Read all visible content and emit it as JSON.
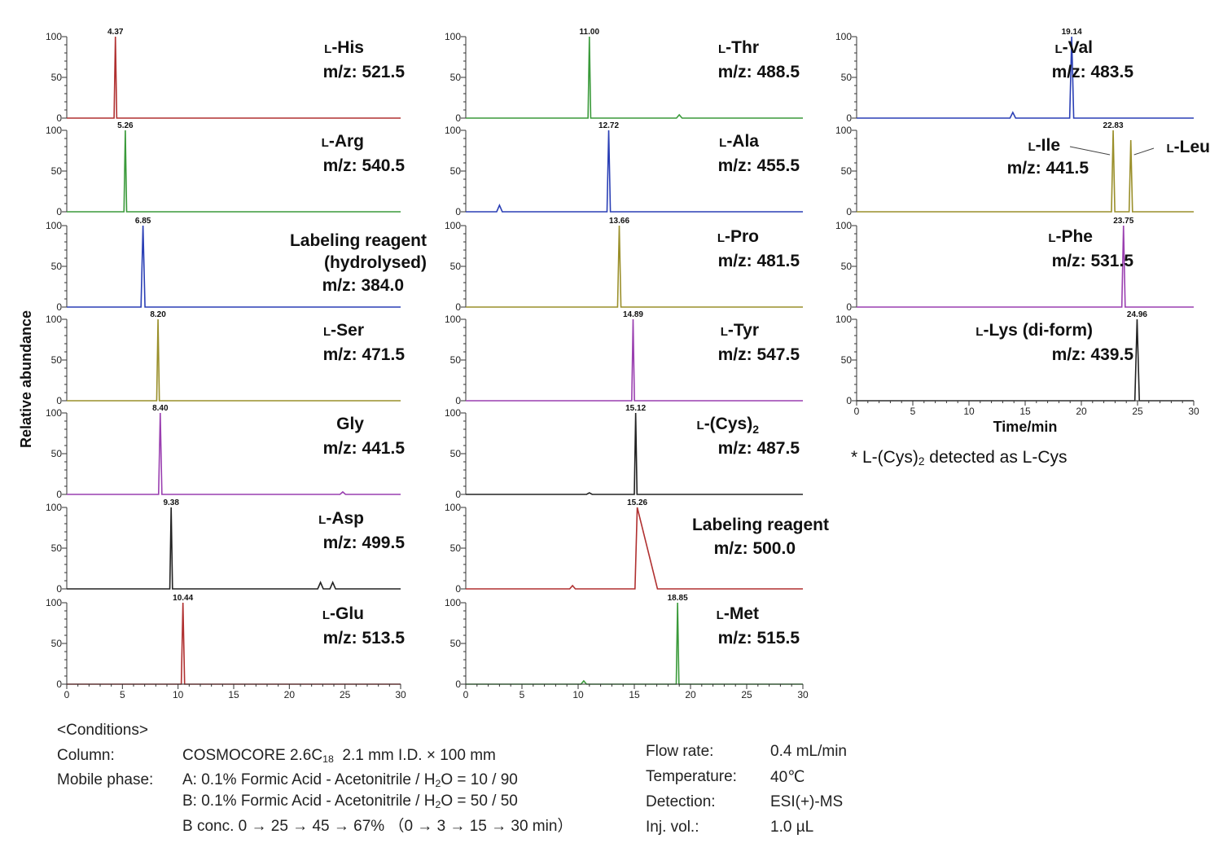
{
  "chart_data": {
    "type": "line",
    "xlabel": "Time/min",
    "ylabel": "Relative abundance",
    "xlim": [
      0,
      30
    ],
    "ylim": [
      0,
      100
    ],
    "xticks": [
      "0",
      "5",
      "10",
      "15",
      "20",
      "25",
      "30"
    ],
    "yticks": [
      "0",
      "50",
      "100"
    ],
    "panels": [
      {
        "col": 0,
        "row": 0,
        "name": "L-His",
        "mz": "m/z: 521.5",
        "peak": 4.37,
        "peak_label": "4.37",
        "color": "#b03030",
        "width": 0.12,
        "minor": []
      },
      {
        "col": 0,
        "row": 1,
        "name": "L-Arg",
        "mz": "m/z: 540.5",
        "peak": 5.26,
        "peak_label": "5.26",
        "color": "#3a9a3a",
        "width": 0.12,
        "minor": []
      },
      {
        "col": 0,
        "row": 2,
        "name": "Labeling reagent\n(hydrolysed)",
        "mz": "m/z: 384.0",
        "peak": 6.85,
        "peak_label": "6.85",
        "color": "#2a3fb5",
        "width": 0.18,
        "minor": []
      },
      {
        "col": 0,
        "row": 3,
        "name": "L-Ser",
        "mz": "m/z: 471.5",
        "peak": 8.2,
        "peak_label": "8.20",
        "color": "#9a8f2a",
        "width": 0.12,
        "minor": []
      },
      {
        "col": 0,
        "row": 4,
        "name": "Gly",
        "mz": "m/z: 441.5",
        "peak": 8.4,
        "peak_label": "8.40",
        "color": "#9a3fb0",
        "width": 0.15,
        "minor": [
          [
            24.8,
            3
          ]
        ]
      },
      {
        "col": 0,
        "row": 5,
        "name": "L-Asp",
        "mz": "m/z: 499.5",
        "peak": 9.38,
        "peak_label": "9.38",
        "color": "#222222",
        "width": 0.12,
        "minor": [
          [
            22.8,
            8
          ],
          [
            23.9,
            8
          ]
        ]
      },
      {
        "col": 0,
        "row": 6,
        "name": "L-Glu",
        "mz": "m/z: 513.5",
        "peak": 10.44,
        "peak_label": "10.44",
        "color": "#b03030",
        "width": 0.15,
        "minor": []
      },
      {
        "col": 1,
        "row": 0,
        "name": "L-Thr",
        "mz": "m/z: 488.5",
        "peak": 11.0,
        "peak_label": "11.00",
        "color": "#3a9a3a",
        "width": 0.12,
        "minor": [
          [
            19.0,
            4
          ]
        ]
      },
      {
        "col": 1,
        "row": 1,
        "name": "L-Ala",
        "mz": "m/z: 455.5",
        "peak": 12.72,
        "peak_label": "12.72",
        "color": "#2a3fb5",
        "width": 0.15,
        "minor": [
          [
            3.0,
            8
          ]
        ]
      },
      {
        "col": 1,
        "row": 2,
        "name": "L-Pro",
        "mz": "m/z: 481.5",
        "peak": 13.66,
        "peak_label": "13.66",
        "color": "#9a8f2a",
        "width": 0.15,
        "minor": []
      },
      {
        "col": 1,
        "row": 3,
        "name": "L-Tyr",
        "mz": "m/z: 547.5",
        "peak": 14.89,
        "peak_label": "14.89",
        "color": "#9a3fb0",
        "width": 0.12,
        "minor": []
      },
      {
        "col": 1,
        "row": 4,
        "name": "L-(Cys)",
        "mz": "m/z: 487.5",
        "peak": 15.12,
        "peak_label": "15.12",
        "color": "#222222",
        "width": 0.12,
        "minor": [
          [
            11.0,
            2
          ]
        ]
      },
      {
        "col": 1,
        "row": 5,
        "name": "Labeling reagent",
        "mz": "m/z: 500.0",
        "peak": 15.26,
        "peak_label": "15.26",
        "color": "#b03030",
        "width": 0.2,
        "tail": 1.6,
        "minor": [
          [
            9.5,
            4
          ]
        ]
      },
      {
        "col": 1,
        "row": 6,
        "name": "L-Met",
        "mz": "m/z: 515.5",
        "peak": 18.85,
        "peak_label": "18.85",
        "color": "#3a9a3a",
        "width": 0.12,
        "minor": [
          [
            10.5,
            4
          ]
        ]
      },
      {
        "col": 2,
        "row": 0,
        "name": "L-Val",
        "mz": "m/z: 483.5",
        "peak": 19.14,
        "peak_label": "19.14",
        "color": "#2a3fb5",
        "width": 0.18,
        "minor": [
          [
            13.9,
            7
          ]
        ]
      },
      {
        "col": 2,
        "row": 1,
        "name": "L-Ile",
        "name2": "L-Leu",
        "mz": "m/z: 441.5",
        "peak": 22.83,
        "peak_label": "22.83",
        "peak2": 24.4,
        "color": "#9a8f2a",
        "width": 0.15,
        "minor": []
      },
      {
        "col": 2,
        "row": 2,
        "name": "L-Phe",
        "mz": "m/z: 531.5",
        "peak": 23.75,
        "peak_label": "23.75",
        "color": "#9a3fb0",
        "width": 0.15,
        "minor": []
      },
      {
        "col": 2,
        "row": 3,
        "name": "L-Lys (di-form)",
        "mz": "m/z: 439.5",
        "peak": 24.96,
        "peak_label": "24.96",
        "color": "#222222",
        "width": 0.2,
        "minor": []
      }
    ],
    "cys_subscript": "2"
  },
  "footnote": {
    "pre": "* L-(Cys)",
    "sub": "2",
    "post": " detected as L-Cys"
  },
  "conditions": {
    "header": "<Conditions>",
    "column_label": "Column:",
    "column_pre": "COSMOCORE 2.6C",
    "column_sub": "18",
    "column_post": "  2.1 mm I.D. × 100 mm",
    "mobile_label": "Mobile phase:",
    "mobile_a_pre": "A: 0.1% Formic Acid - Acetonitrile / H",
    "mobile_a_sub": "2",
    "mobile_a_post": "O = 10 / 90",
    "mobile_b_pre": "B: 0.1% Formic Acid - Acetonitrile / H",
    "mobile_b_sub": "2",
    "mobile_b_post": "O = 50 / 50",
    "bconc": "B conc. 0 → 25 → 45 → 67% （0 → 3 → 15 → 30 min）",
    "flow_label": "Flow rate:",
    "flow_value": "0.4 mL/min",
    "temp_label": "Temperature:",
    "temp_value": "40℃",
    "det_label": "Detection:",
    "det_value": "ESI(+)-MS",
    "inj_label": "Inj. vol.:",
    "inj_value": "1.0 µL"
  }
}
